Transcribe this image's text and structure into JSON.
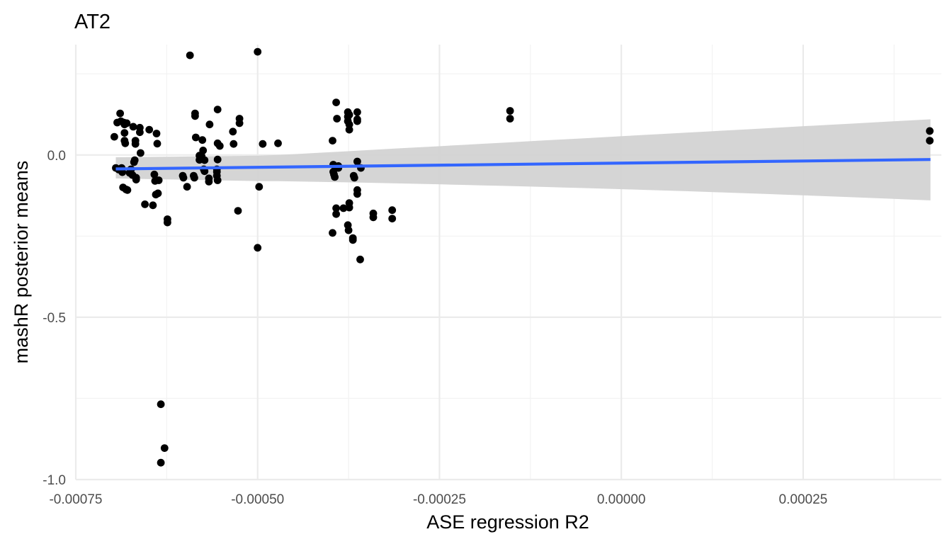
{
  "chart_data": {
    "type": "scatter",
    "title": "AT2",
    "xlabel": "ASE regression R2",
    "ylabel": "mashR posterior means",
    "xlim": [
      -0.00075,
      0.00044
    ],
    "ylim": [
      -1.0,
      0.34
    ],
    "x_ticks": [
      -0.00075,
      -0.0005,
      -0.00025,
      0.0,
      0.00025
    ],
    "x_tick_labels": [
      "-0.00075",
      "-0.00050",
      "-0.00025",
      "0.00000",
      "0.00025"
    ],
    "y_ticks": [
      -1.0,
      -0.5,
      0.0
    ],
    "y_tick_labels": [
      "-1.0",
      "-0.5",
      "0.0"
    ],
    "grid": true,
    "legend": "none",
    "point_color": "#000000",
    "trend": {
      "type": "linear",
      "x_range": [
        -0.000695,
        0.000425
      ],
      "y_start": -0.043,
      "y_end": -0.014,
      "line_color": "#3366ff",
      "band_color": "#d3d3d3",
      "band_lower": [
        -0.085,
        -0.14
      ],
      "band_upper": [
        -0.008,
        0.11
      ]
    },
    "points": [
      {
        "x": -0.000697,
        "y": 0.056
      },
      {
        "x": -0.000695,
        "y": -0.04
      },
      {
        "x": -0.000693,
        "y": 0.1
      },
      {
        "x": -0.000691,
        "y": -0.045
      },
      {
        "x": -0.000689,
        "y": 0.128
      },
      {
        "x": -0.000688,
        "y": 0.104
      },
      {
        "x": -0.000687,
        "y": -0.04
      },
      {
        "x": -0.000686,
        "y": -0.053
      },
      {
        "x": -0.000685,
        "y": -0.1
      },
      {
        "x": -0.000684,
        "y": 0.1
      },
      {
        "x": -0.000683,
        "y": 0.094
      },
      {
        "x": -0.000683,
        "y": 0.068
      },
      {
        "x": -0.000683,
        "y": 0.044
      },
      {
        "x": -0.000682,
        "y": 0.036
      },
      {
        "x": -0.000681,
        "y": -0.106
      },
      {
        "x": -0.00068,
        "y": 0.098
      },
      {
        "x": -0.000679,
        "y": -0.108
      },
      {
        "x": -0.000676,
        "y": -0.055
      },
      {
        "x": -0.000674,
        "y": -0.044
      },
      {
        "x": -0.000672,
        "y": -0.062
      },
      {
        "x": -0.000671,
        "y": 0.087
      },
      {
        "x": -0.00067,
        "y": -0.022
      },
      {
        "x": -0.000669,
        "y": -0.016
      },
      {
        "x": -0.000668,
        "y": 0.044
      },
      {
        "x": -0.000668,
        "y": 0.034
      },
      {
        "x": -0.000667,
        "y": -0.07
      },
      {
        "x": -0.000667,
        "y": -0.076
      },
      {
        "x": -0.000662,
        "y": 0.084
      },
      {
        "x": -0.000662,
        "y": 0.07
      },
      {
        "x": -0.000661,
        "y": 0.006
      },
      {
        "x": -0.000655,
        "y": -0.152
      },
      {
        "x": -0.000649,
        "y": 0.078
      },
      {
        "x": -0.000644,
        "y": -0.155
      },
      {
        "x": -0.000642,
        "y": -0.06
      },
      {
        "x": -0.000641,
        "y": -0.08
      },
      {
        "x": -0.00064,
        "y": -0.122
      },
      {
        "x": -0.000639,
        "y": 0.066
      },
      {
        "x": -0.000638,
        "y": 0.035
      },
      {
        "x": -0.000637,
        "y": -0.118
      },
      {
        "x": -0.000636,
        "y": -0.078
      },
      {
        "x": -0.000633,
        "y": -0.768
      },
      {
        "x": -0.000633,
        "y": -0.948
      },
      {
        "x": -0.000628,
        "y": -0.903
      },
      {
        "x": -0.000624,
        "y": -0.198
      },
      {
        "x": -0.000624,
        "y": -0.208
      },
      {
        "x": -0.000603,
        "y": -0.064
      },
      {
        "x": -0.000602,
        "y": -0.07
      },
      {
        "x": -0.000597,
        "y": -0.098
      },
      {
        "x": -0.000593,
        "y": 0.307
      },
      {
        "x": -0.000588,
        "y": -0.064
      },
      {
        "x": -0.000587,
        "y": -0.07
      },
      {
        "x": -0.000586,
        "y": 0.128
      },
      {
        "x": -0.000586,
        "y": 0.12
      },
      {
        "x": -0.000585,
        "y": 0.054
      },
      {
        "x": -0.00058,
        "y": -0.015
      },
      {
        "x": -0.00058,
        "y": -0.002
      },
      {
        "x": -0.000577,
        "y": -0.004
      },
      {
        "x": -0.000576,
        "y": 0.046
      },
      {
        "x": -0.000575,
        "y": 0.014
      },
      {
        "x": -0.000574,
        "y": -0.044
      },
      {
        "x": -0.000573,
        "y": -0.05
      },
      {
        "x": -0.000573,
        "y": -0.016
      },
      {
        "x": -0.000567,
        "y": -0.072
      },
      {
        "x": -0.000567,
        "y": -0.082
      },
      {
        "x": -0.000566,
        "y": 0.094
      },
      {
        "x": -0.000556,
        "y": -0.044
      },
      {
        "x": -0.000556,
        "y": -0.052
      },
      {
        "x": -0.000556,
        "y": -0.064
      },
      {
        "x": -0.000555,
        "y": -0.078
      },
      {
        "x": -0.000555,
        "y": 0.14
      },
      {
        "x": -0.000555,
        "y": 0.036
      },
      {
        "x": -0.000555,
        "y": -0.014
      },
      {
        "x": -0.000552,
        "y": 0.028
      },
      {
        "x": -0.000534,
        "y": 0.072
      },
      {
        "x": -0.000533,
        "y": 0.034
      },
      {
        "x": -0.000527,
        "y": -0.172
      },
      {
        "x": -0.000525,
        "y": 0.112
      },
      {
        "x": -0.000525,
        "y": 0.098
      },
      {
        "x": -0.0005,
        "y": -0.286
      },
      {
        "x": -0.0005,
        "y": 0.318
      },
      {
        "x": -0.000498,
        "y": -0.098
      },
      {
        "x": -0.000493,
        "y": 0.034
      },
      {
        "x": -0.000472,
        "y": 0.036
      },
      {
        "x": -0.000397,
        "y": 0.044
      },
      {
        "x": -0.000397,
        "y": -0.24
      },
      {
        "x": -0.000396,
        "y": -0.03
      },
      {
        "x": -0.000396,
        "y": -0.052
      },
      {
        "x": -0.000395,
        "y": -0.06
      },
      {
        "x": -0.000394,
        "y": -0.068
      },
      {
        "x": -0.000393,
        "y": -0.036
      },
      {
        "x": -0.000392,
        "y": -0.164
      },
      {
        "x": -0.000392,
        "y": -0.182
      },
      {
        "x": -0.000392,
        "y": 0.162
      },
      {
        "x": -0.000391,
        "y": 0.112
      },
      {
        "x": -0.000389,
        "y": -0.034
      },
      {
        "x": -0.000389,
        "y": -0.04
      },
      {
        "x": -0.000382,
        "y": -0.164
      },
      {
        "x": -0.000376,
        "y": 0.132
      },
      {
        "x": -0.000376,
        "y": 0.118
      },
      {
        "x": -0.000376,
        "y": 0.104
      },
      {
        "x": -0.000376,
        "y": -0.216
      },
      {
        "x": -0.000375,
        "y": -0.232
      },
      {
        "x": -0.000374,
        "y": 0.124
      },
      {
        "x": -0.000374,
        "y": 0.094
      },
      {
        "x": -0.000374,
        "y": 0.078
      },
      {
        "x": -0.000374,
        "y": -0.148
      },
      {
        "x": -0.000374,
        "y": -0.162
      },
      {
        "x": -0.000369,
        "y": -0.256
      },
      {
        "x": -0.000369,
        "y": -0.262
      },
      {
        "x": -0.000368,
        "y": -0.064
      },
      {
        "x": -0.000367,
        "y": -0.07
      },
      {
        "x": -0.000363,
        "y": 0.132
      },
      {
        "x": -0.000363,
        "y": 0.104
      },
      {
        "x": -0.000363,
        "y": 0.11
      },
      {
        "x": -0.000363,
        "y": -0.02
      },
      {
        "x": -0.000363,
        "y": -0.108
      },
      {
        "x": -0.000363,
        "y": -0.12
      },
      {
        "x": -0.000359,
        "y": -0.322
      },
      {
        "x": -0.000358,
        "y": -0.04
      },
      {
        "x": -0.000341,
        "y": -0.18
      },
      {
        "x": -0.000341,
        "y": -0.192
      },
      {
        "x": -0.000315,
        "y": -0.17
      },
      {
        "x": -0.000315,
        "y": -0.196
      },
      {
        "x": -0.000153,
        "y": 0.136
      },
      {
        "x": -0.000153,
        "y": 0.112
      },
      {
        "x": 0.000424,
        "y": 0.074
      },
      {
        "x": 0.000424,
        "y": 0.044
      }
    ]
  }
}
